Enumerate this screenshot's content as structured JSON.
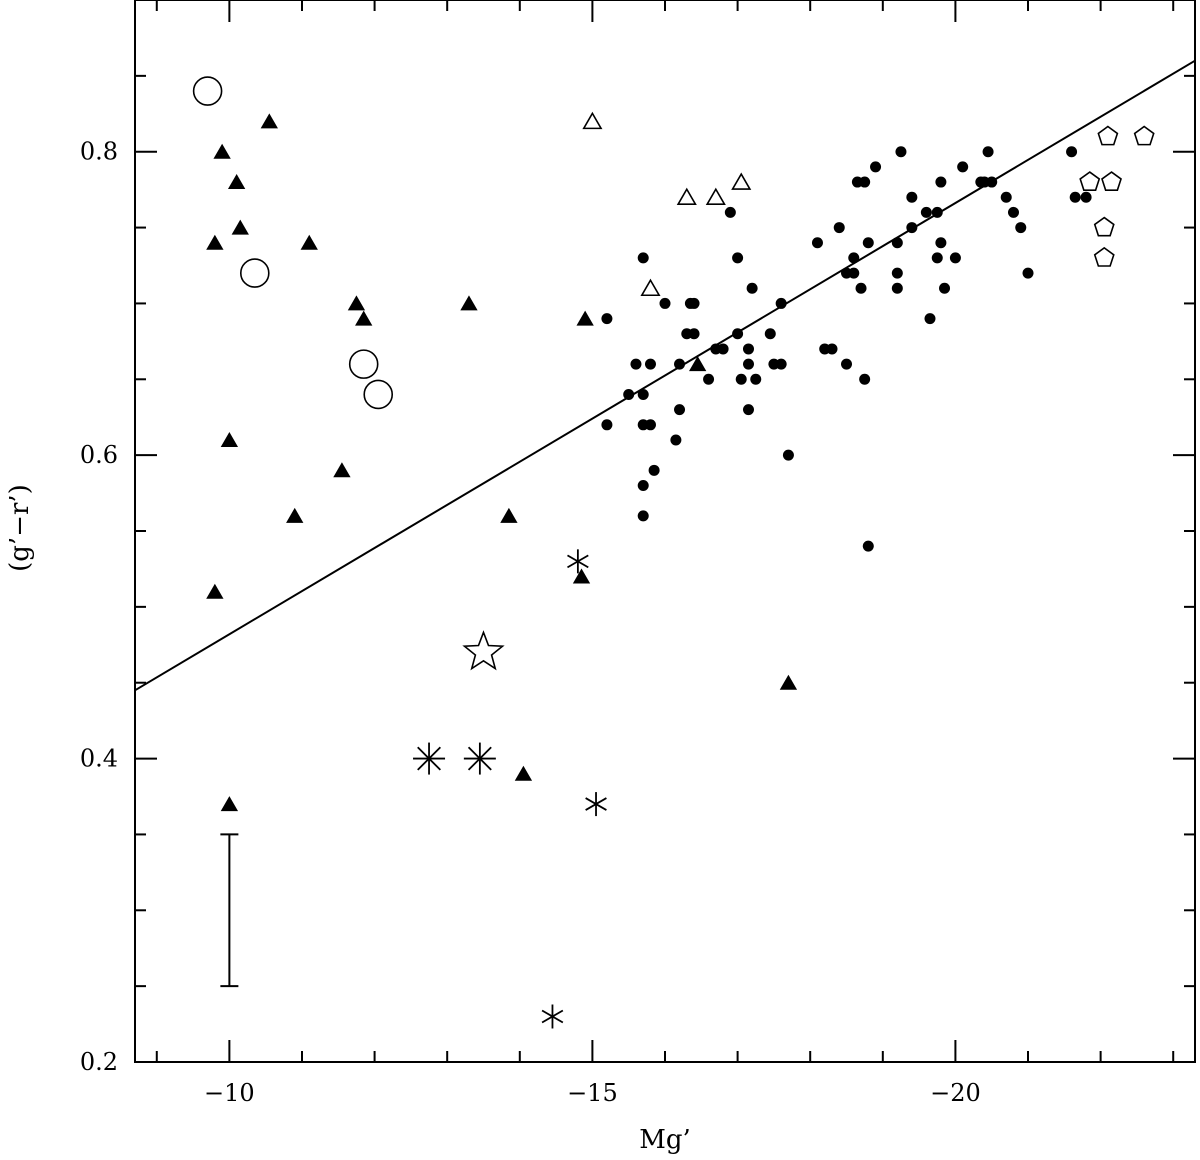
{
  "chart_data": {
    "type": "scatter",
    "title": "",
    "xlabel": "Mg’",
    "ylabel": "(g’−r’)",
    "xlim": [
      -8.7,
      -23.3
    ],
    "ylim": [
      0.2,
      0.9
    ],
    "x_ticks": [
      {
        "value": -10,
        "label": "−10"
      },
      {
        "value": -15,
        "label": "−15"
      },
      {
        "value": -20,
        "label": "−20"
      }
    ],
    "y_ticks": [
      {
        "value": 0.2,
        "label": "0.2"
      },
      {
        "value": 0.4,
        "label": "0.4"
      },
      {
        "value": 0.6,
        "label": "0.6"
      },
      {
        "value": 0.8,
        "label": "0.8"
      }
    ],
    "grid": false,
    "legend": "none",
    "fit_line": {
      "x": [
        -8.7,
        -23.3
      ],
      "y": [
        0.445,
        0.86
      ]
    },
    "error_bar": {
      "x": -10.0,
      "y_low": 0.25,
      "y_high": 0.35
    },
    "series": [
      {
        "marker": "filled-circle",
        "points": [
          [
            -15.2,
            0.69
          ],
          [
            -15.2,
            0.62
          ],
          [
            -15.5,
            0.64
          ],
          [
            -15.6,
            0.66
          ],
          [
            -15.7,
            0.58
          ],
          [
            -15.7,
            0.56
          ],
          [
            -15.7,
            0.62
          ],
          [
            -15.7,
            0.64
          ],
          [
            -15.7,
            0.73
          ],
          [
            -15.8,
            0.66
          ],
          [
            -15.8,
            0.62
          ],
          [
            -15.85,
            0.59
          ],
          [
            -16.0,
            0.7
          ],
          [
            -16.15,
            0.61
          ],
          [
            -16.2,
            0.63
          ],
          [
            -16.2,
            0.66
          ],
          [
            -16.3,
            0.68
          ],
          [
            -16.35,
            0.7
          ],
          [
            -16.4,
            0.7
          ],
          [
            -16.4,
            0.68
          ],
          [
            -16.6,
            0.65
          ],
          [
            -16.7,
            0.67
          ],
          [
            -16.8,
            0.67
          ],
          [
            -16.9,
            0.76
          ],
          [
            -17.0,
            0.73
          ],
          [
            -17.0,
            0.68
          ],
          [
            -17.05,
            0.65
          ],
          [
            -17.15,
            0.66
          ],
          [
            -17.15,
            0.63
          ],
          [
            -17.15,
            0.67
          ],
          [
            -17.25,
            0.65
          ],
          [
            -17.2,
            0.71
          ],
          [
            -17.45,
            0.68
          ],
          [
            -17.5,
            0.66
          ],
          [
            -17.6,
            0.66
          ],
          [
            -17.6,
            0.7
          ],
          [
            -17.7,
            0.6
          ],
          [
            -18.1,
            0.74
          ],
          [
            -18.2,
            0.67
          ],
          [
            -18.3,
            0.67
          ],
          [
            -18.4,
            0.75
          ],
          [
            -18.5,
            0.66
          ],
          [
            -18.5,
            0.72
          ],
          [
            -18.6,
            0.72
          ],
          [
            -18.6,
            0.73
          ],
          [
            -18.65,
            0.78
          ],
          [
            -18.7,
            0.71
          ],
          [
            -18.75,
            0.65
          ],
          [
            -18.75,
            0.78
          ],
          [
            -18.8,
            0.74
          ],
          [
            -18.8,
            0.54
          ],
          [
            -18.9,
            0.79
          ],
          [
            -19.2,
            0.71
          ],
          [
            -19.2,
            0.74
          ],
          [
            -19.25,
            0.8
          ],
          [
            -19.2,
            0.72
          ],
          [
            -19.4,
            0.75
          ],
          [
            -19.4,
            0.77
          ],
          [
            -19.6,
            0.76
          ],
          [
            -19.65,
            0.69
          ],
          [
            -19.75,
            0.73
          ],
          [
            -19.75,
            0.76
          ],
          [
            -19.8,
            0.78
          ],
          [
            -19.8,
            0.74
          ],
          [
            -19.85,
            0.71
          ],
          [
            -20.0,
            0.73
          ],
          [
            -20.1,
            0.79
          ],
          [
            -20.35,
            0.78
          ],
          [
            -20.4,
            0.78
          ],
          [
            -20.45,
            0.8
          ],
          [
            -20.5,
            0.78
          ],
          [
            -20.7,
            0.77
          ],
          [
            -20.8,
            0.76
          ],
          [
            -20.9,
            0.75
          ],
          [
            -21.0,
            0.72
          ],
          [
            -21.6,
            0.8
          ],
          [
            -21.65,
            0.77
          ],
          [
            -21.8,
            0.77
          ]
        ]
      },
      {
        "marker": "filled-triangle",
        "points": [
          [
            -9.8,
            0.74
          ],
          [
            -9.9,
            0.8
          ],
          [
            -10.0,
            0.61
          ],
          [
            -10.0,
            0.37
          ],
          [
            -10.1,
            0.78
          ],
          [
            -10.15,
            0.75
          ],
          [
            -9.8,
            0.51
          ],
          [
            -10.55,
            0.82
          ],
          [
            -10.9,
            0.56
          ],
          [
            -11.1,
            0.74
          ],
          [
            -11.55,
            0.59
          ],
          [
            -11.75,
            0.7
          ],
          [
            -11.85,
            0.69
          ],
          [
            -13.3,
            0.7
          ],
          [
            -13.85,
            0.56
          ],
          [
            -14.05,
            0.39
          ],
          [
            -14.85,
            0.52
          ],
          [
            -14.9,
            0.69
          ],
          [
            -16.45,
            0.66
          ],
          [
            -17.7,
            0.45
          ]
        ]
      },
      {
        "marker": "open-triangle",
        "points": [
          [
            -15.0,
            0.82
          ],
          [
            -15.8,
            0.71
          ],
          [
            -16.3,
            0.77
          ],
          [
            -16.7,
            0.77
          ],
          [
            -17.05,
            0.78
          ]
        ]
      },
      {
        "marker": "open-circle",
        "points": [
          [
            -9.7,
            0.84
          ],
          [
            -10.35,
            0.72
          ],
          [
            -11.85,
            0.66
          ],
          [
            -12.05,
            0.64
          ]
        ]
      },
      {
        "marker": "open-pentagon",
        "points": [
          [
            -22.1,
            0.81
          ],
          [
            -22.6,
            0.81
          ],
          [
            -21.85,
            0.78
          ],
          [
            -22.15,
            0.78
          ],
          [
            -22.05,
            0.75
          ],
          [
            -22.05,
            0.73
          ]
        ]
      },
      {
        "marker": "open-star",
        "points": [
          [
            -13.5,
            0.47
          ]
        ]
      },
      {
        "marker": "asterisk",
        "points": [
          [
            -12.75,
            0.4
          ],
          [
            -13.45,
            0.4
          ]
        ]
      },
      {
        "marker": "six-point-star",
        "points": [
          [
            -14.8,
            0.53
          ],
          [
            -15.05,
            0.37
          ],
          [
            -14.45,
            0.23
          ]
        ]
      }
    ]
  }
}
